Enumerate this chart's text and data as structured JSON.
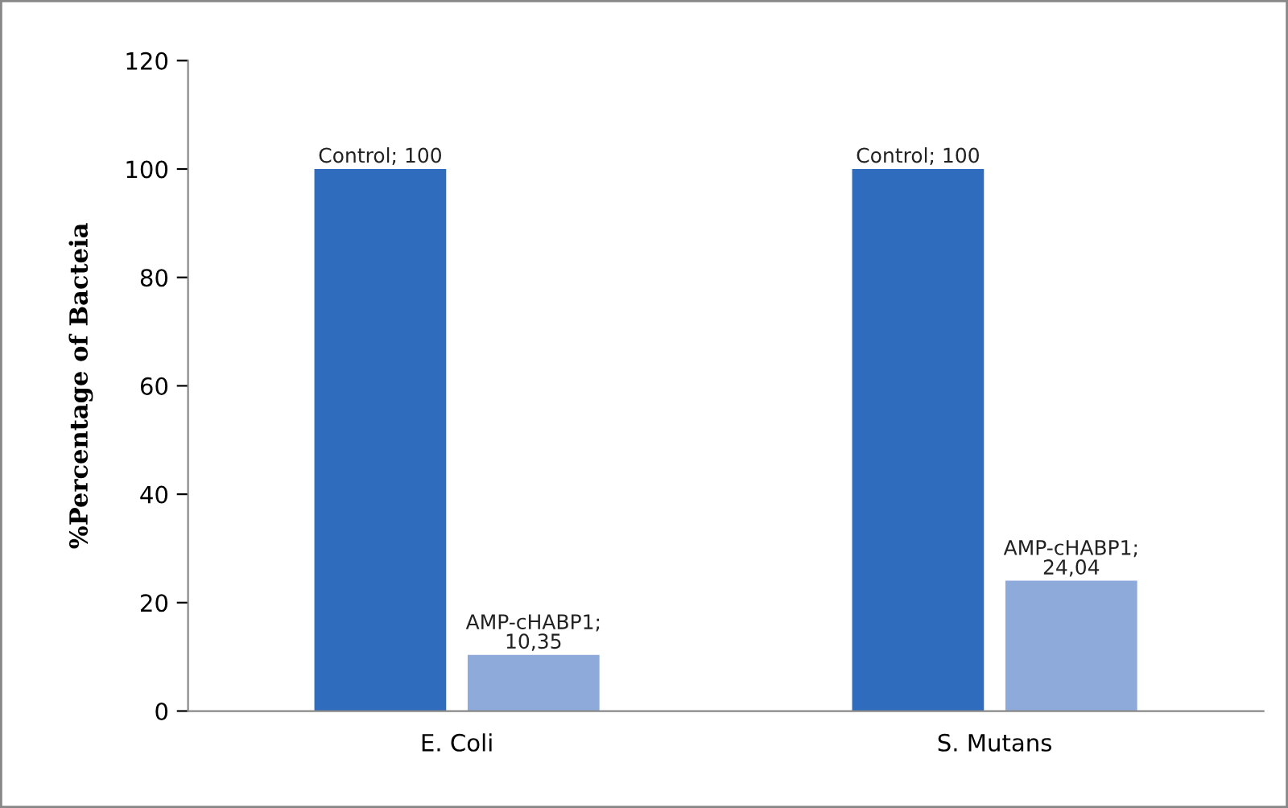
{
  "chart_data": {
    "type": "bar",
    "ylabel": "%Percentage of Bacteia",
    "categories": [
      "E. Coli",
      "S. Mutans"
    ],
    "series": [
      {
        "name": "Control;",
        "color": "#2f6cbd",
        "values": [
          100,
          100
        ],
        "value_labels": [
          "100",
          "100"
        ]
      },
      {
        "name": "AMP-cHABP1;",
        "color": "#8eaadb",
        "values": [
          10.35,
          24.04
        ],
        "value_labels": [
          "10,35",
          "24,04"
        ]
      }
    ],
    "ylim": [
      0,
      120
    ],
    "yticks": [
      0,
      20,
      40,
      60,
      80,
      100,
      120
    ],
    "grid": false,
    "legend": false
  }
}
